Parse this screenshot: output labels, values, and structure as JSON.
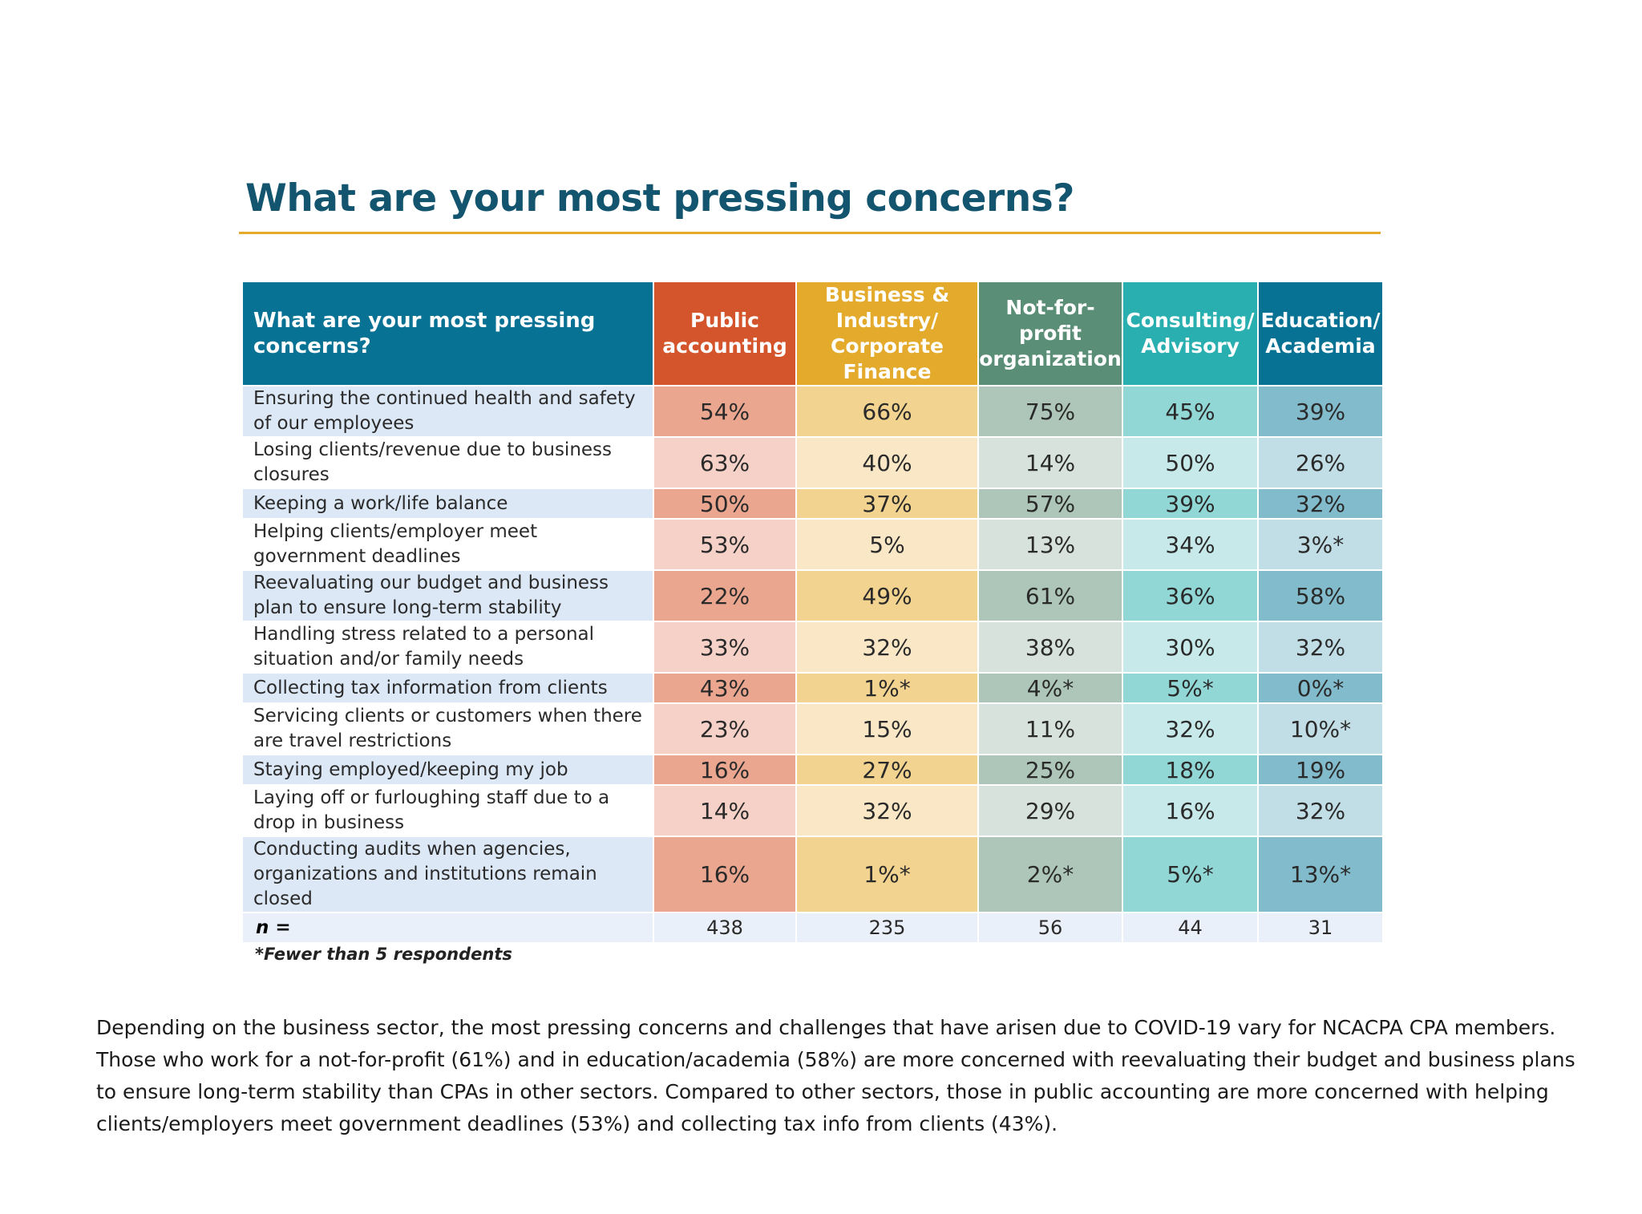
{
  "title": "What are your most pressing concerns?",
  "colors": {
    "title": "#13556e",
    "rule": "#e3aa2b",
    "question_header": "#077294",
    "public": "#d4552b",
    "business": "#e3aa2b",
    "nonprofit": "#5b8e77",
    "consulting": "#2aafb0",
    "education": "#077294"
  },
  "table": {
    "question_header": "What are your most pressing concerns?",
    "columns": [
      {
        "key": "public",
        "label": "Public accounting",
        "dark": "#eaa68f",
        "light": "#f6d1c8",
        "header": "#d4552b"
      },
      {
        "key": "business",
        "label": "Business & Industry/ Corporate Finance",
        "dark": "#f2d38f",
        "light": "#fae7c6",
        "header": "#e3aa2b"
      },
      {
        "key": "nonprofit",
        "label": "Not-for-profit organization",
        "dark": "#adc6b9",
        "light": "#d6e2db",
        "header": "#5b8e77"
      },
      {
        "key": "consulting",
        "label": "Consulting/ Advisory",
        "dark": "#91d7d6",
        "light": "#c8e9e9",
        "header": "#2aafb0"
      },
      {
        "key": "education",
        "label": "Education/ Academia",
        "dark": "#82bccc",
        "light": "#c1dde5",
        "header": "#077294"
      }
    ],
    "rows": [
      {
        "label": "Ensuring the continued health and safety of our employees",
        "values": [
          "54%",
          "66%",
          "75%",
          "45%",
          "39%"
        ]
      },
      {
        "label": "Losing clients/revenue due to business closures",
        "values": [
          "63%",
          "40%",
          "14%",
          "50%",
          "26%"
        ]
      },
      {
        "label": "Keeping a work/life balance",
        "values": [
          "50%",
          "37%",
          "57%",
          "39%",
          "32%"
        ]
      },
      {
        "label": "Helping clients/employer meet government deadlines",
        "values": [
          "53%",
          "5%",
          "13%",
          "34%",
          "3%*"
        ]
      },
      {
        "label": "Reevaluating our budget and business plan to ensure long-term stability",
        "values": [
          "22%",
          "49%",
          "61%",
          "36%",
          "58%"
        ]
      },
      {
        "label": "Handling stress related to a personal situation and/or family needs",
        "values": [
          "33%",
          "32%",
          "38%",
          "30%",
          "32%"
        ]
      },
      {
        "label": "Collecting tax information from clients",
        "values": [
          "43%",
          "1%*",
          "4%*",
          "5%*",
          "0%*"
        ]
      },
      {
        "label": "Servicing clients or customers when there are travel restrictions",
        "values": [
          "23%",
          "15%",
          "11%",
          "32%",
          "10%*"
        ]
      },
      {
        "label": "Staying employed/keeping my job",
        "values": [
          "16%",
          "27%",
          "25%",
          "18%",
          "19%"
        ]
      },
      {
        "label": "Laying off or furloughing staff due to a drop in business",
        "values": [
          "14%",
          "32%",
          "29%",
          "16%",
          "32%"
        ]
      },
      {
        "label": "Conducting audits when agencies, organizations and institutions remain closed",
        "values": [
          "16%",
          "1%*",
          "2%*",
          "5%*",
          "13%*"
        ]
      }
    ],
    "n_label": "n =",
    "n_values": [
      "438",
      "235",
      "56",
      "44",
      "31"
    ]
  },
  "footnote": "*Fewer than 5 respondents",
  "paragraph": "Depending on the business sector, the most pressing concerns and challenges that have arisen due to COVID-19 vary for NCACPA CPA members. Those who work for a not-for-profit (61%) and in education/academia (58%) are more concerned with reevaluating their budget and business plans to ensure long-term stability than CPAs in other sectors. Compared to other sectors, those in public accounting are more concerned with helping clients/employers meet government deadlines (53%) and collecting tax info from clients (43%)."
}
